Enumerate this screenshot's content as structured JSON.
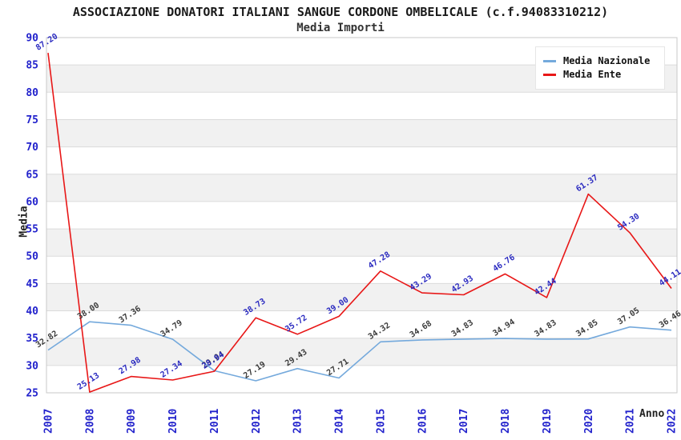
{
  "header": {
    "title": "ASSOCIAZIONE DONATORI ITALIANI SANGUE CORDONE OMBELICALE (c.f.94083310212)",
    "subtitle": "Media Importi"
  },
  "chart_data": {
    "type": "line",
    "title": "Media Importi",
    "xlabel": "Anno",
    "ylabel": "Media",
    "categories": [
      "2007",
      "2008",
      "2009",
      "2010",
      "2011",
      "2012",
      "2013",
      "2014",
      "2015",
      "2016",
      "2017",
      "2018",
      "2019",
      "2020",
      "2021",
      "2022"
    ],
    "series": [
      {
        "name": "Media Nazionale",
        "color": "#74a9dc",
        "label_color": "#3a3a3a",
        "values": [
          32.82,
          38.0,
          37.36,
          34.79,
          29.04,
          27.19,
          29.43,
          27.71,
          34.32,
          34.68,
          34.83,
          34.94,
          34.83,
          34.85,
          37.05,
          36.46
        ]
      },
      {
        "name": "Media Ente",
        "color": "#e81717",
        "label_color": "#2a2ac0",
        "values": [
          87.2,
          25.13,
          27.98,
          27.34,
          28.94,
          38.73,
          35.72,
          39.0,
          47.28,
          43.29,
          42.93,
          46.76,
          42.44,
          61.37,
          54.3,
          44.11
        ]
      }
    ],
    "ylim": [
      25,
      90
    ],
    "ytick_step": 5,
    "grid": true,
    "legend_position": "top-right",
    "band_color": "#f1f1f1",
    "grid_color": "#dbdbdb",
    "border_color": "#c9c9c9",
    "tick_color": "#2222cc"
  }
}
